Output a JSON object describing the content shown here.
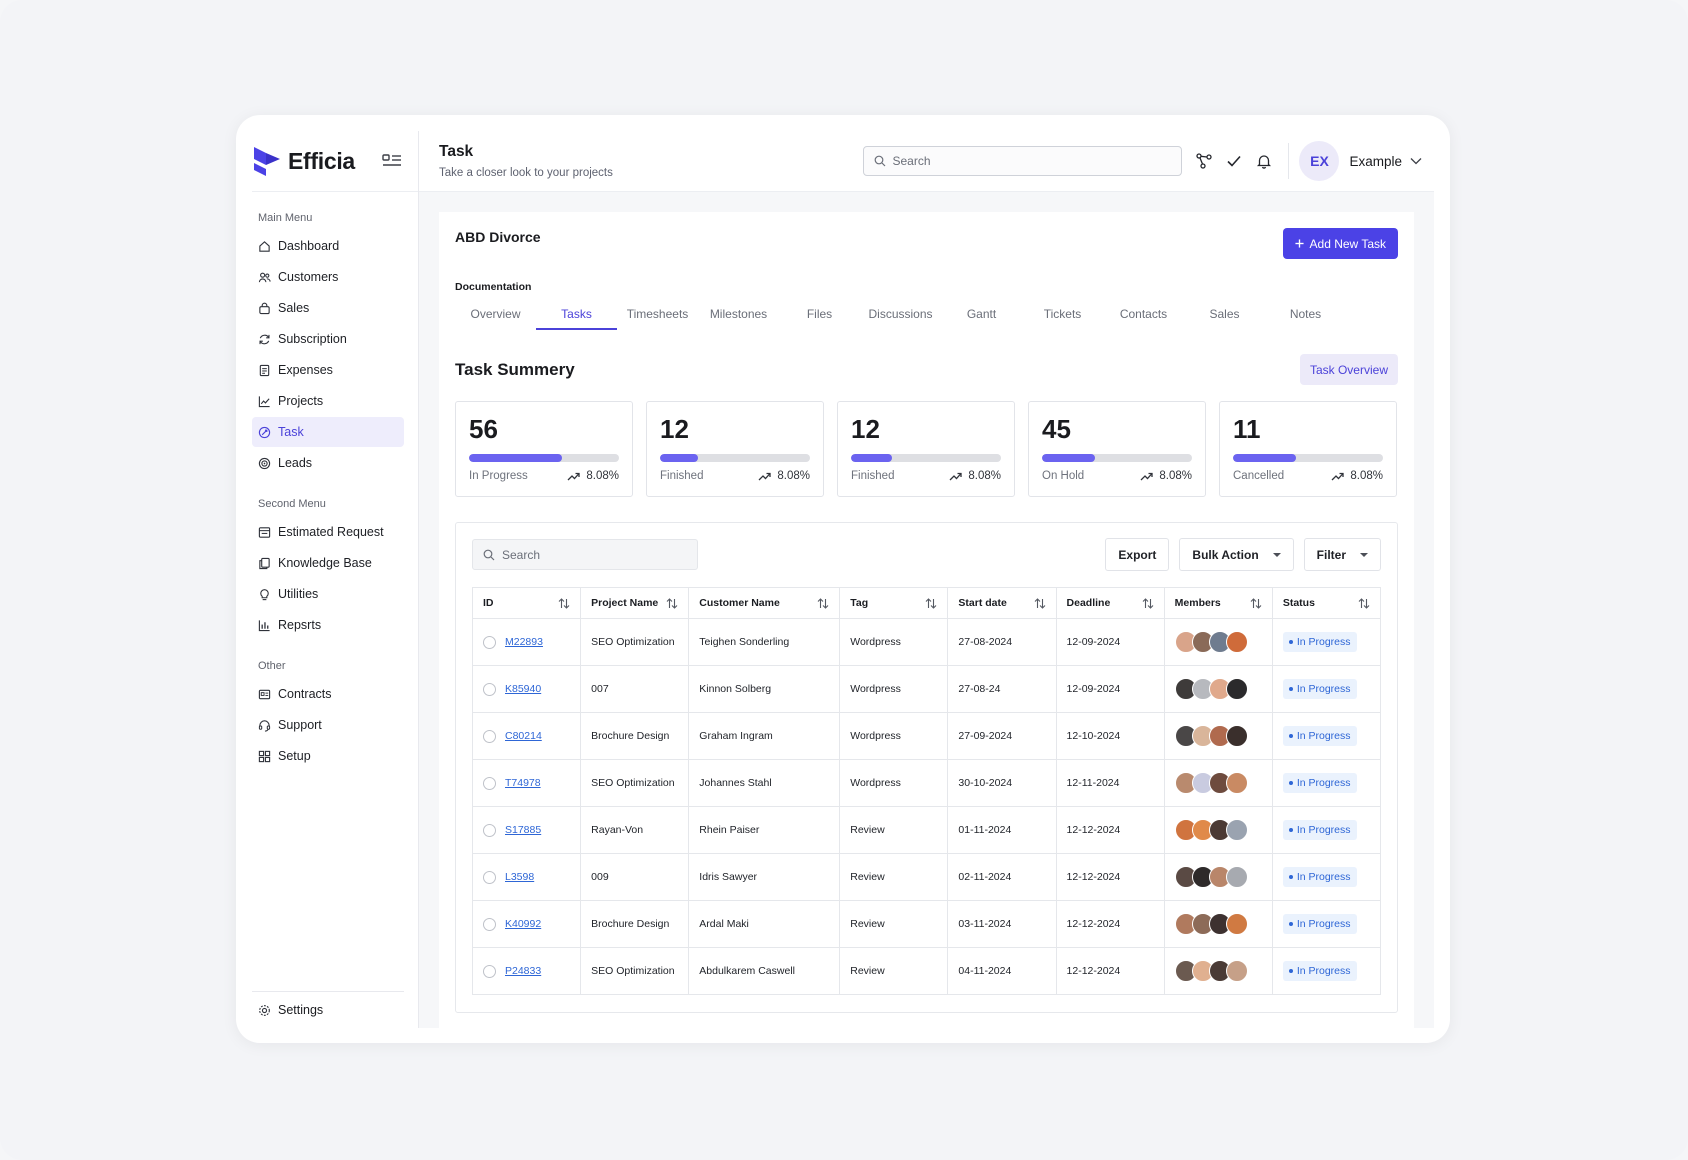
{
  "brand": {
    "name": "Efficia"
  },
  "sidebar": {
    "sections": [
      {
        "title": "Main Menu",
        "items": [
          {
            "label": "Dashboard",
            "icon": "home-icon",
            "active": false
          },
          {
            "label": "Customers",
            "icon": "users-icon",
            "active": false
          },
          {
            "label": "Sales",
            "icon": "bag-icon",
            "active": false
          },
          {
            "label": "Subscription",
            "icon": "refresh-icon",
            "active": false
          },
          {
            "label": "Expenses",
            "icon": "receipt-icon",
            "active": false
          },
          {
            "label": "Projects",
            "icon": "chart-line-icon",
            "active": false
          },
          {
            "label": "Task",
            "icon": "task-icon",
            "active": true
          },
          {
            "label": "Leads",
            "icon": "target-icon",
            "active": false
          }
        ]
      },
      {
        "title": "Second Menu",
        "items": [
          {
            "label": "Estimated Request",
            "icon": "estimate-icon",
            "active": false
          },
          {
            "label": "Knowledge Base",
            "icon": "copy-icon",
            "active": false
          },
          {
            "label": "Utilities",
            "icon": "bulb-icon",
            "active": false
          },
          {
            "label": "Repsrts",
            "icon": "bar-chart-icon",
            "active": false
          }
        ]
      },
      {
        "title": "Other",
        "items": [
          {
            "label": "Contracts",
            "icon": "contract-icon",
            "active": false
          },
          {
            "label": "Support",
            "icon": "headset-icon",
            "active": false
          },
          {
            "label": "Setup",
            "icon": "grid-icon",
            "active": false
          }
        ]
      }
    ],
    "settings_label": "Settings"
  },
  "header": {
    "title": "Task",
    "subtitle": "Take a closer look to your projects",
    "search_placeholder": "Search",
    "user_initials": "EX",
    "user_name": "Example"
  },
  "project": {
    "name": "ABD Divorce",
    "add_button": "Add New Task",
    "section_label": "Documentation",
    "tabs": [
      "Overview",
      "Tasks",
      "Timesheets",
      "Milestones",
      "Files",
      "Discussions",
      "Gantt",
      "Tickets",
      "Contacts",
      "Sales",
      "Notes"
    ],
    "active_tab": 1
  },
  "summary": {
    "title": "Task Summery",
    "overview_button": "Task Overview",
    "accent": "#6b63f0",
    "stats": [
      {
        "value": "56",
        "label": "In Progress",
        "delta": "8.08%",
        "progress": 0.62
      },
      {
        "value": "12",
        "label": "Finished",
        "delta": "8.08%",
        "progress": 0.25
      },
      {
        "value": "12",
        "label": "Finished",
        "delta": "8.08%",
        "progress": 0.27
      },
      {
        "value": "45",
        "label": "On Hold",
        "delta": "8.08%",
        "progress": 0.35
      },
      {
        "value": "11",
        "label": "Cancelled",
        "delta": "8.08%",
        "progress": 0.42
      }
    ]
  },
  "table": {
    "search_placeholder": "Search",
    "export_label": "Export",
    "bulk_label": "Bulk Action",
    "filter_label": "Filter",
    "columns": [
      "ID",
      "Project Name",
      "Customer Name",
      "Tag",
      "Start date",
      "Deadline",
      "Members",
      "Status"
    ],
    "rows": [
      {
        "id": "M22893",
        "project": "SEO Optimization",
        "customer": "Teighen Sonderling",
        "tag": "Wordpress",
        "start": "27-08-2024",
        "deadline": "12-09-2024",
        "status": "In Progress",
        "members": [
          "#d9a48a",
          "#8a6a58",
          "#6f7c8f",
          "#cf6b3a"
        ]
      },
      {
        "id": "K85940",
        "project": "007",
        "customer": "Kinnon Solberg",
        "tag": "Wordpress",
        "start": "27-08-24",
        "deadline": "12-09-2024",
        "status": "In Progress",
        "members": [
          "#3e3b3a",
          "#b7b9be",
          "#e0a98c",
          "#2b2a2c"
        ]
      },
      {
        "id": "C80214",
        "project": "Brochure Design",
        "customer": "Graham Ingram",
        "tag": "Wordpress",
        "start": "27-09-2024",
        "deadline": "12-10-2024",
        "status": "In Progress",
        "members": [
          "#4a4747",
          "#d9b59a",
          "#b06a4e",
          "#3a2f2c"
        ]
      },
      {
        "id": "T74978",
        "project": "SEO Optimization",
        "customer": "Johannes Stahl",
        "tag": "Wordpress",
        "start": "30-10-2024",
        "deadline": "12-11-2024",
        "status": "In Progress",
        "members": [
          "#b98a6e",
          "#c9cbe0",
          "#6e4b3e",
          "#c98a63"
        ]
      },
      {
        "id": "S17885",
        "project": "Rayan-Von",
        "customer": "Rhein Paiser",
        "tag": "Review",
        "start": "01-11-2024",
        "deadline": "12-12-2024",
        "status": "In Progress",
        "members": [
          "#d0743f",
          "#e08a4a",
          "#4c3a34",
          "#9aa3b0"
        ]
      },
      {
        "id": "L3598",
        "project": "009",
        "customer": "Idris Sawyer",
        "tag": "Review",
        "start": "02-11-2024",
        "deadline": "12-12-2024",
        "status": "In Progress",
        "members": [
          "#5a4a44",
          "#2e2a2a",
          "#b9866a",
          "#a7aab0"
        ]
      },
      {
        "id": "K40992",
        "project": "Brochure Design",
        "customer": "Ardal Maki",
        "tag": "Review",
        "start": "03-11-2024",
        "deadline": "12-12-2024",
        "status": "In Progress",
        "members": [
          "#b07a5e",
          "#8d6b58",
          "#3d3130",
          "#d07a42"
        ]
      },
      {
        "id": "P24833",
        "project": "SEO Optimization",
        "customer": "Abdulkarem Caswell",
        "tag": "Review",
        "start": "04-11-2024",
        "deadline": "12-12-2024",
        "status": "In Progress",
        "members": [
          "#6b5a50",
          "#e0b090",
          "#4a3b36",
          "#c6a088"
        ]
      }
    ]
  }
}
